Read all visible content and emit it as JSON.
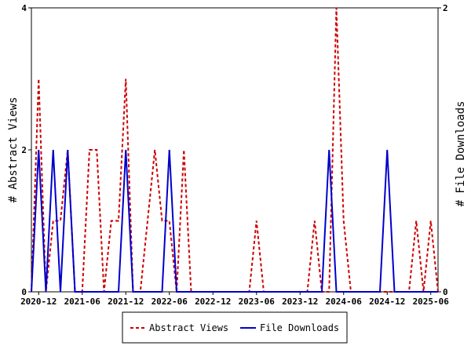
{
  "chart_data": {
    "type": "line",
    "x": [
      "2020-11",
      "2020-12",
      "2021-01",
      "2021-02",
      "2021-03",
      "2021-04",
      "2021-05",
      "2021-06",
      "2021-07",
      "2021-08",
      "2021-09",
      "2021-10",
      "2021-11",
      "2021-12",
      "2022-01",
      "2022-02",
      "2022-03",
      "2022-04",
      "2022-05",
      "2022-06",
      "2022-07",
      "2022-08",
      "2022-09",
      "2022-10",
      "2022-11",
      "2022-12",
      "2023-01",
      "2023-02",
      "2023-03",
      "2023-04",
      "2023-05",
      "2023-06",
      "2023-07",
      "2023-08",
      "2023-09",
      "2023-10",
      "2023-11",
      "2023-12",
      "2024-01",
      "2024-02",
      "2024-03",
      "2024-04",
      "2024-05",
      "2024-06",
      "2024-07",
      "2024-08",
      "2024-09",
      "2024-10",
      "2024-11",
      "2024-12",
      "2025-01",
      "2025-02",
      "2025-03",
      "2025-04",
      "2025-05",
      "2025-06",
      "2025-07"
    ],
    "series": [
      {
        "name": "Abstract Views",
        "axis": "left",
        "color": "#cc0000",
        "style": "dashed",
        "values": [
          0,
          3,
          0,
          1,
          1,
          2,
          0,
          0,
          2,
          2,
          0,
          1,
          1,
          3,
          0,
          0,
          1,
          2,
          1,
          1,
          0,
          2,
          0,
          0,
          0,
          0,
          0,
          0,
          0,
          0,
          0,
          1,
          0,
          0,
          0,
          0,
          0,
          0,
          0,
          1,
          0,
          0,
          4,
          1,
          0,
          0,
          0,
          0,
          0,
          0,
          0,
          0,
          0,
          1,
          0,
          1,
          0
        ]
      },
      {
        "name": "File Downloads",
        "axis": "right",
        "color": "#0000cc",
        "style": "solid",
        "values": [
          0,
          1,
          0,
          1,
          0,
          1,
          0,
          0,
          0,
          0,
          0,
          0,
          0,
          1,
          0,
          0,
          0,
          0,
          0,
          1,
          0,
          0,
          0,
          0,
          0,
          0,
          0,
          0,
          0,
          0,
          0,
          0,
          0,
          0,
          0,
          0,
          0,
          0,
          0,
          0,
          0,
          1,
          0,
          0,
          0,
          0,
          0,
          0,
          0,
          1,
          0,
          0,
          0,
          0,
          0,
          0,
          0
        ]
      }
    ],
    "x_tick_labels": [
      "2020-12",
      "2021-06",
      "2021-12",
      "2022-06",
      "2022-12",
      "2023-06",
      "2023-12",
      "2024-06",
      "2024-12",
      "2025-06"
    ],
    "ylabel": "# Abstract Views",
    "ylabel_right": "# File Downloads",
    "ylim": [
      0,
      4
    ],
    "ylim_right": [
      0,
      2
    ],
    "y_ticks": [
      "0",
      "2",
      "4"
    ],
    "y_ticks_right": [
      "0",
      "2"
    ],
    "grid": false,
    "legend_placement": "bottom-center"
  }
}
